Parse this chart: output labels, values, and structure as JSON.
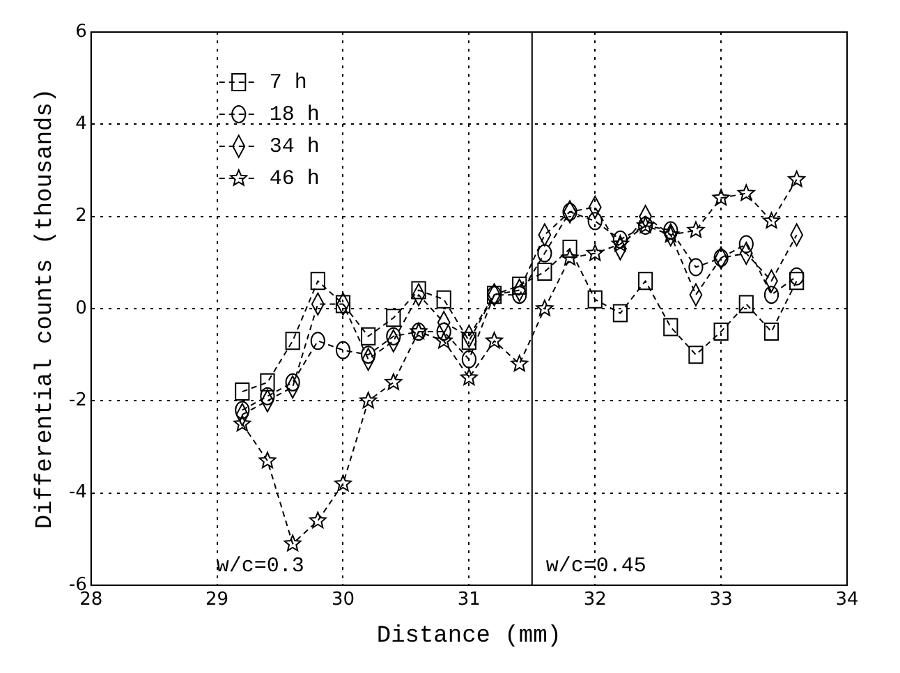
{
  "chart_data": {
    "type": "line",
    "xlabel": "Distance (mm)",
    "ylabel": "Differential counts (thousands)",
    "x": [
      29.2,
      29.4,
      29.6,
      29.8,
      30.0,
      30.2,
      30.4,
      30.6,
      30.8,
      31.0,
      31.2,
      31.4,
      31.6,
      31.8,
      32.0,
      32.2,
      32.4,
      32.6,
      32.8,
      33.0,
      33.2,
      33.4,
      33.6
    ],
    "series": [
      {
        "name": "7 h",
        "color": "#000000",
        "marker": "square",
        "values": [
          -1.8,
          -1.6,
          -0.7,
          0.6,
          0.1,
          -0.6,
          -0.2,
          0.4,
          0.2,
          -0.7,
          0.3,
          0.5,
          0.8,
          1.3,
          0.2,
          -0.1,
          0.6,
          -0.4,
          -1.0,
          -0.5,
          0.1,
          -0.5,
          0.6
        ]
      },
      {
        "name": "18 h",
        "color": "#000000",
        "marker": "circle",
        "values": [
          -2.2,
          -1.9,
          -1.6,
          -0.7,
          -0.9,
          -1.0,
          -0.6,
          -0.5,
          -0.5,
          -1.1,
          0.3,
          0.3,
          1.2,
          2.1,
          1.9,
          1.5,
          1.8,
          1.7,
          0.9,
          1.1,
          1.4,
          0.3,
          0.7
        ]
      },
      {
        "name": "34 h",
        "color": "#000000",
        "marker": "diamond",
        "values": [
          -2.3,
          -2.0,
          -1.7,
          0.1,
          0.1,
          -1.1,
          -0.7,
          0.3,
          -0.3,
          -0.6,
          0.3,
          0.4,
          1.6,
          2.1,
          2.2,
          1.3,
          2.0,
          1.6,
          0.3,
          1.1,
          1.2,
          0.6,
          1.6
        ]
      },
      {
        "name": "46 h",
        "color": "#000000",
        "marker": "star",
        "values": [
          -2.5,
          -3.3,
          -5.1,
          -4.6,
          -3.8,
          -2.0,
          -1.6,
          -0.5,
          -0.7,
          -1.5,
          -0.7,
          -1.2,
          0.0,
          1.1,
          1.2,
          1.4,
          1.8,
          1.6,
          1.7,
          2.4,
          2.5,
          1.9,
          2.8
        ]
      }
    ],
    "xlim": [
      28,
      34
    ],
    "xticks": [
      28,
      29,
      30,
      31,
      32,
      33,
      34
    ],
    "ylim": [
      -6,
      6
    ],
    "yticks": [
      -6,
      -4,
      -2,
      0,
      2,
      4,
      6
    ],
    "grid": true,
    "legend": "top left",
    "line_style": "dashed",
    "ref_lines": [
      {
        "axis": "x",
        "value": 31.5,
        "color": "#000000",
        "line_style": "solid"
      }
    ],
    "annotations": [
      "w/c=0.3",
      "w/c=0.45"
    ]
  }
}
